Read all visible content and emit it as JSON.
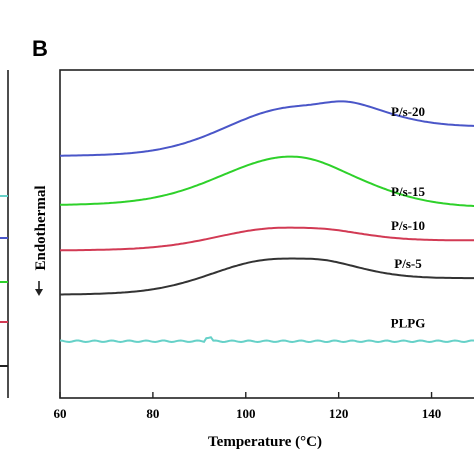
{
  "chart_data": {
    "type": "line",
    "panel_label": "B",
    "xlabel": "Temperature (°C)",
    "ylabel": "Endothermal",
    "xlim": [
      60,
      150
    ],
    "xticks": [
      "60",
      "80",
      "100",
      "120",
      "140"
    ],
    "x_tick_values": [
      60,
      80,
      100,
      120,
      140
    ],
    "y_ticks_shown": false,
    "grid": false,
    "series": [
      {
        "name": "P/s-20",
        "color": "#4a56c8",
        "baseline": 0.92,
        "peak_x": 110,
        "peak_height": 0.36,
        "peak_width": 14,
        "end_offset": 0.2,
        "x": [
          60,
          80,
          90,
          100,
          110,
          120,
          130,
          140,
          150
        ],
        "y": [
          0.92,
          0.97,
          1.1,
          1.22,
          1.28,
          1.2,
          1.12,
          1.08,
          1.08
        ]
      },
      {
        "name": "P/s-15",
        "color": "#2ed12a",
        "baseline": 0.53,
        "peak_x": 110,
        "peak_height": 0.37,
        "peak_width": 15,
        "end_offset": -0.05,
        "x": [
          60,
          80,
          90,
          100,
          110,
          120,
          130,
          140,
          150
        ],
        "y": [
          0.53,
          0.6,
          0.72,
          0.85,
          0.9,
          0.83,
          0.7,
          0.53,
          0.48
        ]
      },
      {
        "name": "P/s-10",
        "color": "#d23a54",
        "baseline": 0.17,
        "peak_x": 107,
        "peak_height": 0.16,
        "peak_width": 13,
        "end_offset": 0.05,
        "x": [
          60,
          80,
          90,
          100,
          110,
          120,
          130,
          140,
          150
        ],
        "y": [
          0.17,
          0.19,
          0.24,
          0.31,
          0.33,
          0.28,
          0.22,
          0.22,
          0.22
        ]
      },
      {
        "name": "P/s-5",
        "color": "#333333",
        "baseline": -0.18,
        "peak_x": 106,
        "peak_height": 0.26,
        "peak_width": 13,
        "end_offset": 0.1,
        "x": [
          60,
          80,
          90,
          100,
          110,
          120,
          130,
          140,
          150
        ],
        "y": [
          -0.18,
          -0.16,
          -0.1,
          0.03,
          0.07,
          0.0,
          -0.08,
          -0.08,
          -0.08
        ]
      },
      {
        "name": "PLPG",
        "color": "#66d1c8",
        "baseline": -0.55,
        "peak_x": 105,
        "peak_height": 0.0,
        "peak_width": 10,
        "end_offset": 0.0,
        "x": [
          60,
          80,
          90,
          100,
          110,
          120,
          130,
          140,
          150
        ],
        "y": [
          -0.55,
          -0.55,
          -0.55,
          -0.55,
          -0.55,
          -0.55,
          -0.55,
          -0.55,
          -0.55
        ]
      }
    ]
  }
}
